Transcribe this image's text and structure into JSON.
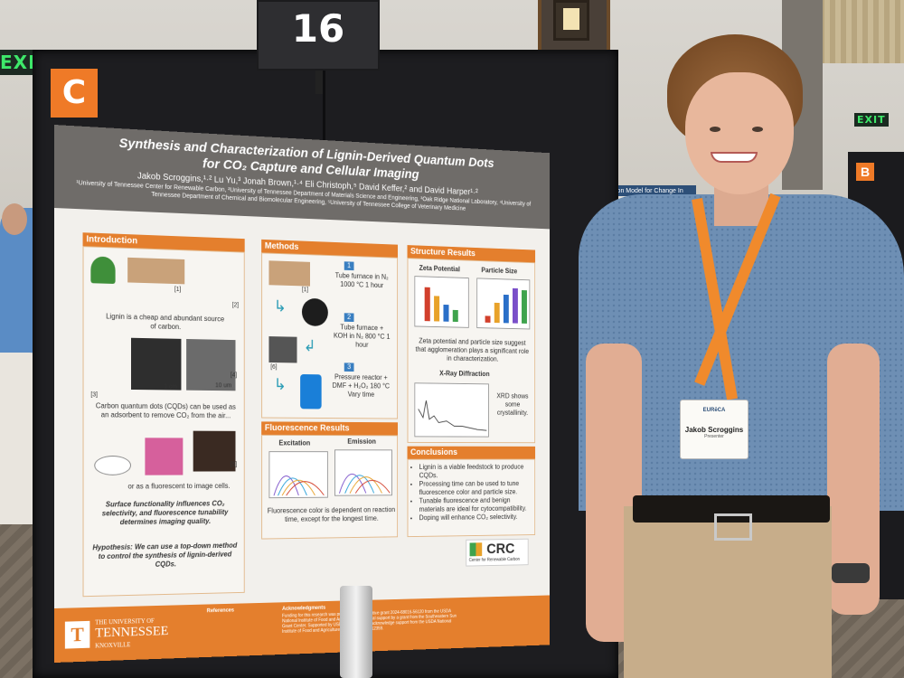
{
  "signage": {
    "exit_left": "EXIT",
    "exit_right": "EXIT",
    "booth_number": "16",
    "board_label": "C",
    "background_board_label": "B",
    "background_poster_text": "ion Model for Change In"
  },
  "poster": {
    "title_line1": "Synthesis and Characterization of Lignin-Derived Quantum Dots",
    "title_line2": "for CO₂ Capture and Cellular Imaging",
    "authors": "Jakob Scroggins,¹·² Lu Yu,³ Jonah Brown,¹·⁴ Eli Christoph,⁵ David Keffer,² and David Harper¹·²",
    "affiliations": "¹University of Tennessee Center for Renewable Carbon, ²University of Tennessee Department of Materials Science and Engineering, ³Oak Ridge National Laboratory, ⁴University of Tennessee Department of Chemical and Biomolecular Engineering, ⁵University of Tennessee College of Veterinary Medicine",
    "introduction": {
      "heading": "Introduction",
      "ref1": "[1]",
      "ref2": "[2]",
      "ref3": "[3]",
      "ref4": "[4]",
      "ref5": "[5]",
      "scale1": "1 cm",
      "scale2": "10 um",
      "text1": "Lignin is a cheap and abundant source of carbon.",
      "text2": "Carbon quantum dots (CQDs) can be used as an adsorbent to remove CO₂ from the air...",
      "text3": "or as a fluorescent to image cells.",
      "text4": "Surface functionality influences CO₂ selectivity, and fluorescence tunability determines imaging quality.",
      "text5": "Hypothesis: We can use a top-down method to control the synthesis of lignin-derived CQDs."
    },
    "methods": {
      "heading": "Methods",
      "ref": "[1]",
      "ref6": "[6]",
      "step1_num": "1",
      "step1": "Tube furnace in N₂ 1000 °C 1 hour",
      "step2_num": "2",
      "step2": "Tube furnace + KOH in N₂ 800 °C 1 hour",
      "step3_num": "3",
      "step3": "Pressure reactor + DMF + H₂O₂ 180 °C Vary time"
    },
    "fluorescence": {
      "heading": "Fluorescence Results",
      "excitation": "Excitation",
      "emission": "Emission",
      "text": "Fluorescence color is dependent on reaction time, except for the longest time."
    },
    "structure": {
      "heading": "Structure Results",
      "zeta": "Zeta Potential",
      "particle": "Particle Size",
      "text": "Zeta potential and particle size suggest that agglomeration plays a significant role in characterization.",
      "xrd_heading": "X-Ray Diffraction",
      "xrd_text": "XRD shows some crystallinity."
    },
    "conclusions": {
      "heading": "Conclusions",
      "items": [
        "Lignin is a viable feedstock to produce CQDs.",
        "Processing time can be used to tune fluorescence color and particle size.",
        "Tunable fluorescence and benign materials are ideal for cytocompatibility.",
        "Doping will enhance CO₂ selectivity."
      ]
    },
    "footer": {
      "references_heading": "References",
      "acknowledgments_heading": "Acknowledgments",
      "acknowledgments": "Funding for this research was provided by competitive grant 2024-68016-56120 from the USDA National Institute of Food and Agriculture and partial support by a grant from the Southeastern Sun Grant Center. Supported by USDA CSREES. We acknowledge support from the USDA National Institute of Food and Agriculture, Hatch project 1012359.",
      "ut_line1": "THE UNIVERSITY OF",
      "ut_line2": "TENNESSEE",
      "ut_line3": "KNOXVILLE",
      "ut_mark": "T",
      "crc": "CRC",
      "crc_sub": "Center for Renewable Carbon"
    }
  },
  "badge": {
    "logo": "EURēCA",
    "name": "Jakob Scroggins",
    "role": "Presenter"
  },
  "colors": {
    "poster_orange": "#e47f2d",
    "header_gray": "#6f6c69",
    "lanyard": "#f08a2c",
    "shirt": "#6e8fb4"
  }
}
